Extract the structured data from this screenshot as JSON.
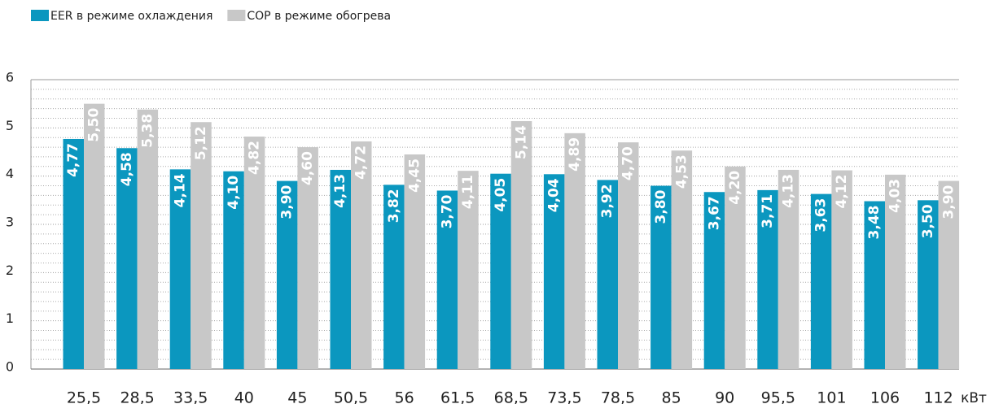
{
  "chart_data": {
    "type": "bar",
    "categories": [
      "25,5",
      "28,5",
      "33,5",
      "40",
      "45",
      "50,5",
      "56",
      "61,5",
      "68,5",
      "73,5",
      "78,5",
      "85",
      "90",
      "95,5",
      "101",
      "106",
      "112"
    ],
    "x_label": "кВт",
    "series": [
      {
        "name": "EER в режиме охлаждения",
        "color": "#0b97bf",
        "values": [
          4.77,
          4.58,
          4.14,
          4.1,
          3.9,
          4.13,
          3.82,
          3.7,
          4.05,
          4.04,
          3.92,
          3.8,
          3.67,
          3.71,
          3.63,
          3.48,
          3.5
        ],
        "value_labels": [
          "4,77",
          "4,58",
          "4,14",
          "4,10",
          "3,90",
          "4,13",
          "3,82",
          "3,70",
          "4,05",
          "4,04",
          "3,92",
          "3,80",
          "3,67",
          "3,71",
          "3,63",
          "3,48",
          "3,50"
        ]
      },
      {
        "name": "COP в режиме обогрева",
        "color": "#c8c8c8",
        "values": [
          5.5,
          5.38,
          5.12,
          4.82,
          4.6,
          4.72,
          4.45,
          4.11,
          5.14,
          4.89,
          4.7,
          4.53,
          4.2,
          4.13,
          4.12,
          4.03,
          3.9
        ],
        "value_labels": [
          "5,50",
          "5,38",
          "5,12",
          "4,82",
          "4,60",
          "4,72",
          "4,45",
          "4,11",
          "5,14",
          "4,89",
          "4,70",
          "4,53",
          "4,20",
          "4,13",
          "4,12",
          "4,03",
          "3,90"
        ]
      }
    ],
    "ylim": [
      0,
      6
    ],
    "yticks": [
      0,
      1,
      2,
      3,
      4,
      5,
      6
    ],
    "minor_yticks": [
      0.2,
      0.4,
      0.6,
      0.8,
      1.2,
      1.4,
      1.6,
      1.8,
      2.2,
      2.4,
      2.6,
      2.8,
      3.2,
      3.4,
      3.6,
      3.8,
      4.2,
      4.4,
      4.6,
      4.8,
      5.2,
      5.4,
      5.6,
      5.8
    ],
    "grid": true,
    "legend": "top-left"
  }
}
